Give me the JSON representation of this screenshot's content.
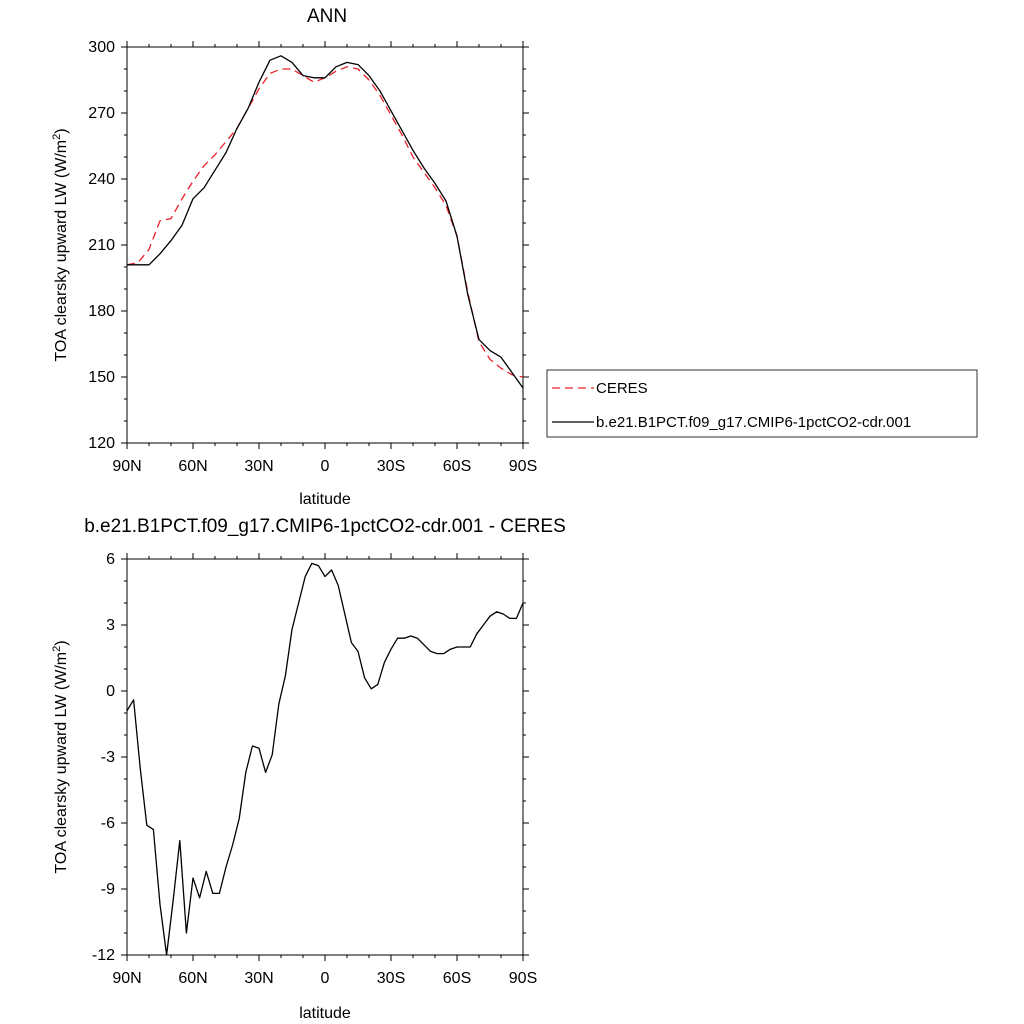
{
  "chart_data": [
    {
      "type": "line",
      "title": "ANN",
      "xlabel": "latitude",
      "ylabel": "TOA clearsky upward LW (W/m",
      "ylabel_sup": "2",
      "ylabel_close": ")",
      "x_ticks": [
        "90N",
        "60N",
        "30N",
        "0",
        "30S",
        "60S",
        "90S"
      ],
      "xlim": [
        90,
        -90
      ],
      "ylim": [
        120,
        300
      ],
      "y_ticks": [
        120,
        150,
        180,
        210,
        240,
        270,
        300
      ],
      "grid": false,
      "legend_placement": "right",
      "x": [
        90,
        85,
        80,
        75,
        70,
        65,
        60,
        55,
        50,
        45,
        40,
        35,
        30,
        25,
        20,
        15,
        10,
        5,
        0,
        -5,
        -10,
        -15,
        -20,
        -25,
        -30,
        -35,
        -40,
        -45,
        -50,
        -55,
        -60,
        -65,
        -70,
        -75,
        -80,
        -85,
        -90
      ],
      "series": [
        {
          "name": "CERES",
          "color": "#e8202a",
          "dash": "dashed",
          "values": [
            201,
            202,
            208,
            221,
            222,
            231,
            239,
            246,
            251,
            257,
            263,
            272,
            281,
            288,
            290,
            290,
            287,
            284,
            286,
            289,
            291,
            290,
            285,
            278,
            269,
            260,
            250,
            243,
            236,
            228,
            214,
            188,
            166,
            158,
            154,
            151,
            150
          ]
        },
        {
          "name": "b.e21.B1PCT.f09_g17.CMIP6-1pctCO2-cdr.001",
          "color": "#000000",
          "dash": "solid",
          "values": [
            201,
            201,
            201,
            206,
            212,
            219,
            231,
            236,
            244,
            252,
            263,
            272,
            284,
            294,
            296,
            293,
            287,
            286,
            286,
            291,
            293,
            292,
            287,
            280,
            271,
            262,
            253,
            245,
            238,
            230,
            214,
            187,
            167,
            162,
            159,
            152,
            145
          ]
        }
      ]
    },
    {
      "type": "line",
      "title": "b.e21.B1PCT.f09_g17.CMIP6-1pctCO2-cdr.001 - CERES",
      "xlabel": "latitude",
      "ylabel": "TOA clearsky upward LW (W/m",
      "ylabel_sup": "2",
      "ylabel_close": ")",
      "x_ticks": [
        "90N",
        "60N",
        "30N",
        "0",
        "30S",
        "60S",
        "90S"
      ],
      "xlim": [
        90,
        -90
      ],
      "ylim": [
        -12,
        6
      ],
      "y_ticks": [
        -12,
        -9,
        -6,
        -3,
        0,
        3,
        6
      ],
      "grid": false,
      "x": [
        90,
        87,
        84,
        81,
        78,
        75,
        72,
        69,
        66,
        63,
        60,
        57,
        54,
        51,
        48,
        45,
        42,
        39,
        36,
        33,
        30,
        27,
        24,
        21,
        18,
        15,
        12,
        9,
        6,
        3,
        0,
        -3,
        -6,
        -9,
        -12,
        -15,
        -18,
        -21,
        -24,
        -27,
        -30,
        -33,
        -36,
        -39,
        -42,
        -45,
        -48,
        -51,
        -54,
        -57,
        -60,
        -63,
        -66,
        -69,
        -72,
        -75,
        -78,
        -81,
        -84,
        -87,
        -90
      ],
      "series": [
        {
          "name": "",
          "color": "#000000",
          "dash": "solid",
          "values": [
            -0.9,
            -0.4,
            -3.5,
            -6.1,
            -6.3,
            -9.7,
            -12.0,
            -9.5,
            -6.8,
            -11.0,
            -8.5,
            -9.4,
            -8.2,
            -9.2,
            -9.2,
            -8.0,
            -7.0,
            -5.8,
            -3.7,
            -2.5,
            -2.6,
            -3.7,
            -2.9,
            -0.6,
            0.7,
            2.8,
            4.0,
            5.2,
            5.8,
            5.7,
            5.2,
            5.5,
            4.8,
            3.5,
            2.2,
            1.8,
            0.6,
            0.1,
            0.3,
            1.3,
            1.9,
            2.4,
            2.4,
            2.5,
            2.4,
            2.1,
            1.8,
            1.7,
            1.7,
            1.9,
            2.0,
            2.0,
            2.0,
            2.6,
            3.0,
            3.4,
            3.6,
            3.5,
            3.3,
            3.3,
            4.0
          ]
        }
      ]
    }
  ]
}
